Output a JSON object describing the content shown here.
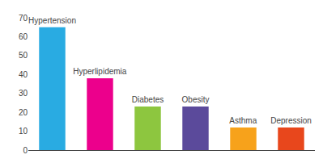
{
  "chart_data": {
    "type": "bar",
    "categories": [
      "Hypertension",
      "Hyperlipidemia",
      "Diabetes",
      "Obesity",
      "Asthma",
      "Depression"
    ],
    "values": [
      65,
      38,
      23,
      23,
      12,
      12
    ],
    "colors": [
      "#29ABE2",
      "#EC008C",
      "#8DC63F",
      "#5B4A9B",
      "#F7A21B",
      "#E8471C"
    ],
    "ylim": [
      0,
      70
    ],
    "yticks": [
      0,
      10,
      20,
      30,
      40,
      50,
      60,
      70
    ],
    "grid": false,
    "tick_labels": "y"
  }
}
